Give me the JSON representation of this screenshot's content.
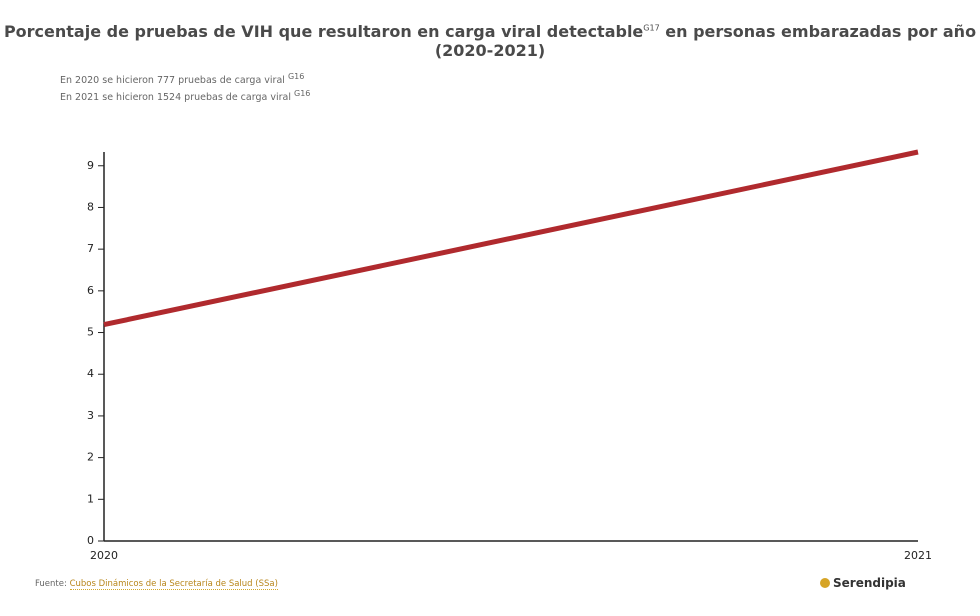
{
  "chart_data": {
    "type": "line",
    "title": [
      "Porcentaje de pruebas de VIH que resultaron en carga viral detectable",
      "G17",
      "en personas embarazadas por año (2020-2021)"
    ],
    "notes": [
      {
        "text": "En 2020 se hicieron 777 pruebas de carga viral",
        "ref": "G16"
      },
      {
        "text": "En 2021 se hicieron 1524 pruebas de carga viral",
        "ref": "G16"
      }
    ],
    "categories": [
      "2020",
      "2021"
    ],
    "series": [
      {
        "name": "Porcentaje",
        "color": "#b02a2e",
        "values": [
          5.19,
          9.33
        ]
      }
    ],
    "ylim": [
      0,
      9.33
    ],
    "yticks": [
      0,
      1,
      2,
      3,
      4,
      5,
      6,
      7,
      8,
      9
    ],
    "source_label": "Fuente:",
    "source": "Cubos Dinámicos de la Secretaría de Salud (SSa)",
    "brand": "Serendipia"
  }
}
